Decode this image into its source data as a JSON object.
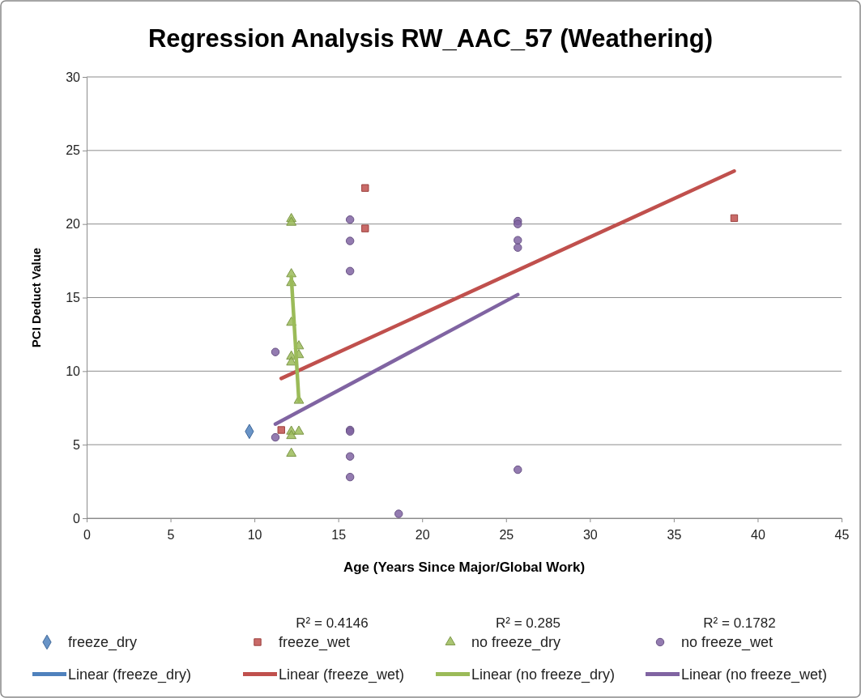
{
  "chart_data": {
    "type": "scatter",
    "title": "Regression Analysis RW_AAC_57 (Weathering)",
    "xlabel": "Age (Years Since Major/Global  Work)",
    "ylabel": "PCI Deduct Value",
    "xlim": [
      0,
      45
    ],
    "xticks": [
      0,
      5,
      10,
      15,
      20,
      25,
      30,
      35,
      40,
      45
    ],
    "ylim": [
      0,
      30
    ],
    "yticks": [
      0,
      5,
      10,
      15,
      20,
      25,
      30
    ],
    "grid": "y",
    "legend": "bottom",
    "annotations": [
      "R² = 0.4146",
      "R² = 0.285",
      "R² = 0.1782"
    ],
    "series": [
      {
        "name": "freeze_dry",
        "marker": "diamond",
        "color": "#4f81bd",
        "x": [
          9.7
        ],
        "values": [
          5.9
        ]
      },
      {
        "name": "freeze_wet",
        "marker": "square",
        "color": "#c0504d",
        "x": [
          11.6,
          16.6,
          16.6,
          38.6
        ],
        "values": [
          6.0,
          22.45,
          19.7,
          20.4
        ]
      },
      {
        "name": "no freeze_dry",
        "marker": "triangle",
        "color": "#9bbb59",
        "x": [
          12.2,
          12.2,
          12.2,
          12.2,
          12.2,
          12.2,
          12.2,
          12.2,
          12.2,
          12.2,
          12.65,
          12.65,
          12.65,
          12.65
        ],
        "values": [
          20.35,
          20.1,
          16.6,
          16.0,
          13.3,
          11.0,
          10.6,
          5.9,
          5.6,
          4.4,
          11.7,
          11.1,
          8.0,
          5.9
        ]
      },
      {
        "name": "no freeze_wet",
        "marker": "circle",
        "color": "#8064a2",
        "x": [
          11.25,
          11.25,
          15.7,
          15.7,
          15.7,
          15.7,
          15.7,
          15.7,
          15.7,
          18.6,
          25.7,
          25.7,
          25.7,
          25.7,
          25.7
        ],
        "values": [
          11.3,
          5.5,
          20.3,
          18.85,
          16.8,
          6.0,
          5.9,
          4.2,
          2.8,
          0.3,
          20.2,
          20.0,
          18.9,
          18.4,
          3.3
        ]
      },
      {
        "name": "Linear (freeze_dry)",
        "type": "line",
        "color": "#4f81bd"
      },
      {
        "name": "Linear (freeze_wet)",
        "type": "line",
        "color": "#c0504d",
        "x": [
          11.6,
          38.6
        ],
        "values": [
          9.5,
          23.6
        ]
      },
      {
        "name": "Linear (no freeze_dry)",
        "type": "line",
        "color": "#9bbb59",
        "x": [
          12.2,
          12.65
        ],
        "values": [
          16.4,
          8.0
        ]
      },
      {
        "name": "Linear (no freeze_wet)",
        "type": "line",
        "color": "#8064a2",
        "x": [
          11.25,
          25.7
        ],
        "values": [
          6.4,
          15.2
        ]
      }
    ]
  }
}
